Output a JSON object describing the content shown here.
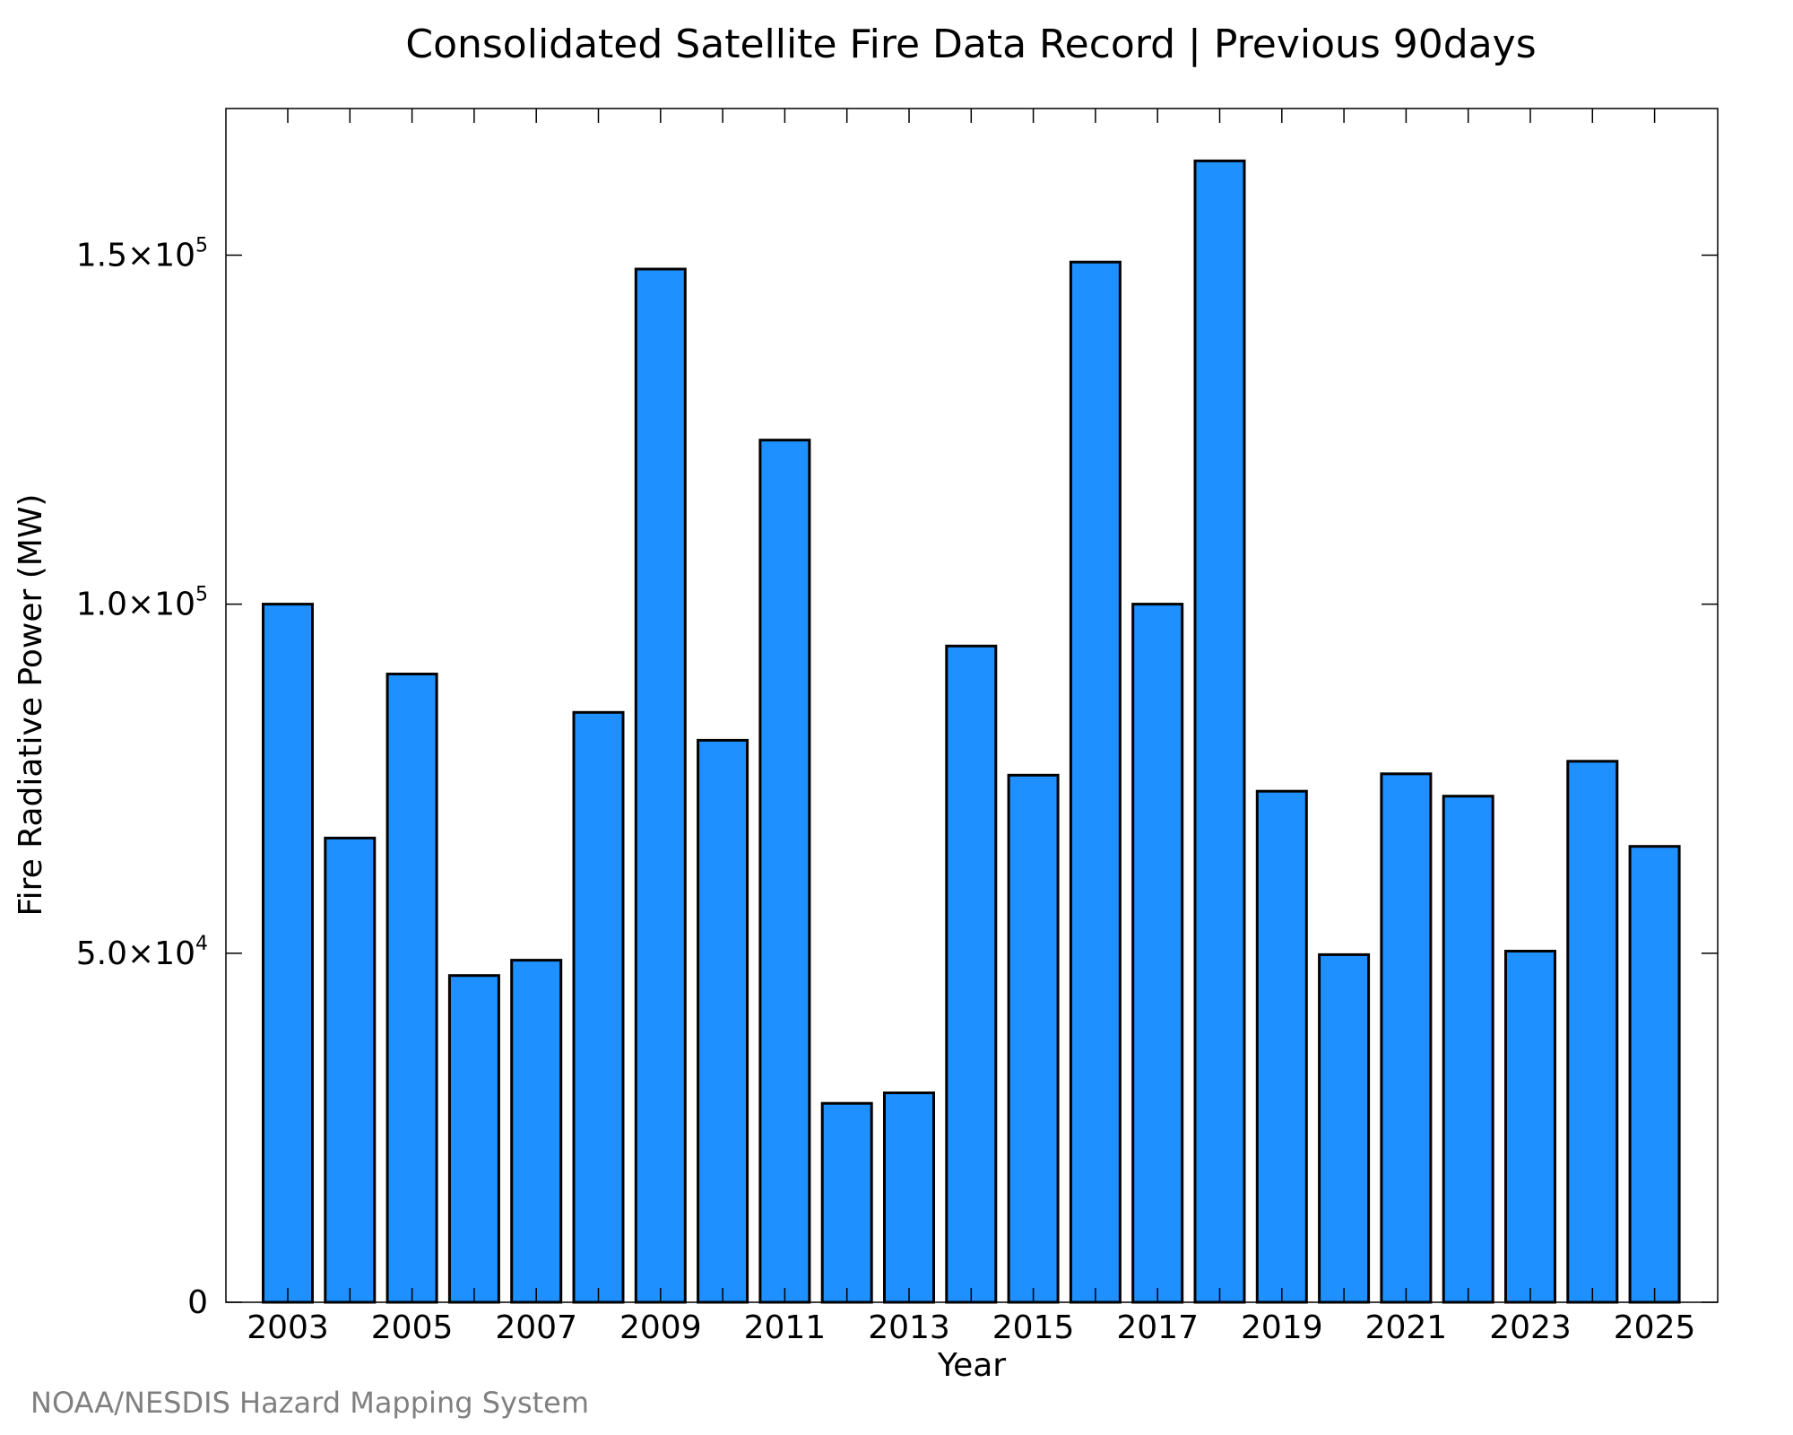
{
  "chart_data": {
    "type": "bar",
    "title": "Consolidated Satellite Fire Data Record | Previous 90days",
    "xlabel": "Year",
    "ylabel": "Fire Radiative Power (MW)",
    "categories": [
      "2003",
      "2004",
      "2005",
      "2006",
      "2007",
      "2008",
      "2009",
      "2010",
      "2011",
      "2012",
      "2013",
      "2014",
      "2015",
      "2016",
      "2017",
      "2018",
      "2019",
      "2020",
      "2021",
      "2022",
      "2023",
      "2024",
      "2025"
    ],
    "values": [
      100000,
      66500,
      90000,
      46800,
      49000,
      84500,
      148000,
      80500,
      123500,
      28500,
      30000,
      94000,
      75500,
      149000,
      100000,
      163500,
      73200,
      49800,
      75700,
      72500,
      50300,
      77500,
      65300
    ],
    "ylim": [
      0,
      171000
    ],
    "x_tick_labels": [
      "2003",
      "2005",
      "2007",
      "2009",
      "2011",
      "2013",
      "2015",
      "2017",
      "2019",
      "2021",
      "2023",
      "2025"
    ],
    "y_ticks": [
      {
        "value": 0,
        "mantissa": "0",
        "exponent": ""
      },
      {
        "value": 50000,
        "mantissa": "5.0×10",
        "exponent": "4"
      },
      {
        "value": 100000,
        "mantissa": "1.0×10",
        "exponent": "5"
      },
      {
        "value": 150000,
        "mantissa": "1.5×10",
        "exponent": "5"
      }
    ],
    "grid": false,
    "bar_color": "#1e90ff",
    "bar_edge_color": "#000000"
  },
  "credit": "NOAA/NESDIS Hazard Mapping System"
}
